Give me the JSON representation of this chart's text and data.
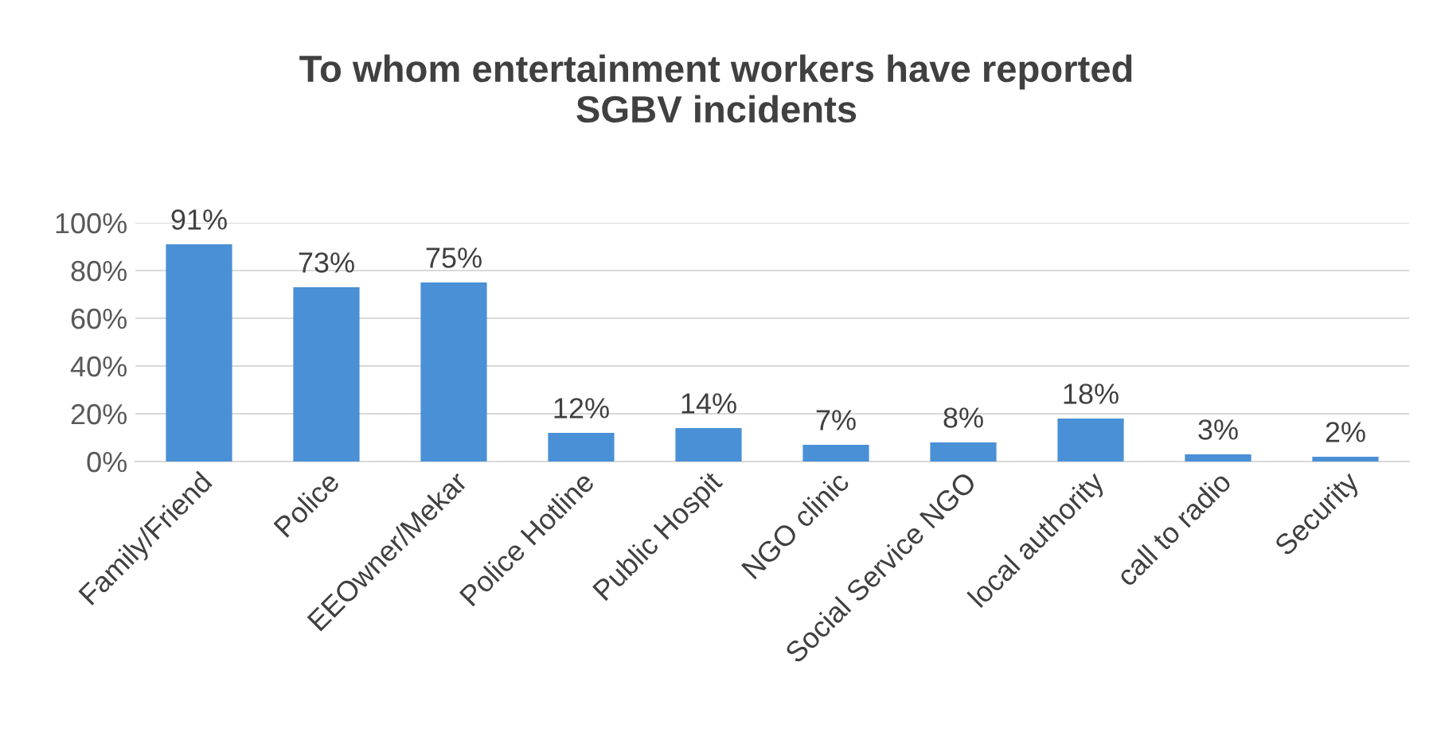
{
  "chart_data": {
    "type": "bar",
    "title": "To whom entertainment workers have reported\nSGBV incidents",
    "categories": [
      "Family/Friend",
      "Police",
      "EEOwner/Mekar",
      "Police Hotline",
      "Public Hospit",
      "NGO clinic",
      "Social Service NGO",
      "local authority",
      "call to radio",
      "Security"
    ],
    "values": [
      91,
      73,
      75,
      12,
      14,
      7,
      8,
      18,
      3,
      2
    ],
    "value_labels": [
      "91%",
      "73%",
      "75%",
      "12%",
      "14%",
      "7%",
      "8%",
      "18%",
      "3%",
      "2%"
    ],
    "color": "#4a90d6",
    "ylim": [
      0,
      100
    ],
    "yticks": [
      {
        "value": 0,
        "label": "0%"
      },
      {
        "value": 20,
        "label": "20%"
      },
      {
        "value": 40,
        "label": "40%"
      },
      {
        "value": 60,
        "label": "60%"
      },
      {
        "value": 80,
        "label": "80%"
      },
      {
        "value": 100,
        "label": "100%"
      }
    ],
    "grid": "y",
    "legend": false
  }
}
